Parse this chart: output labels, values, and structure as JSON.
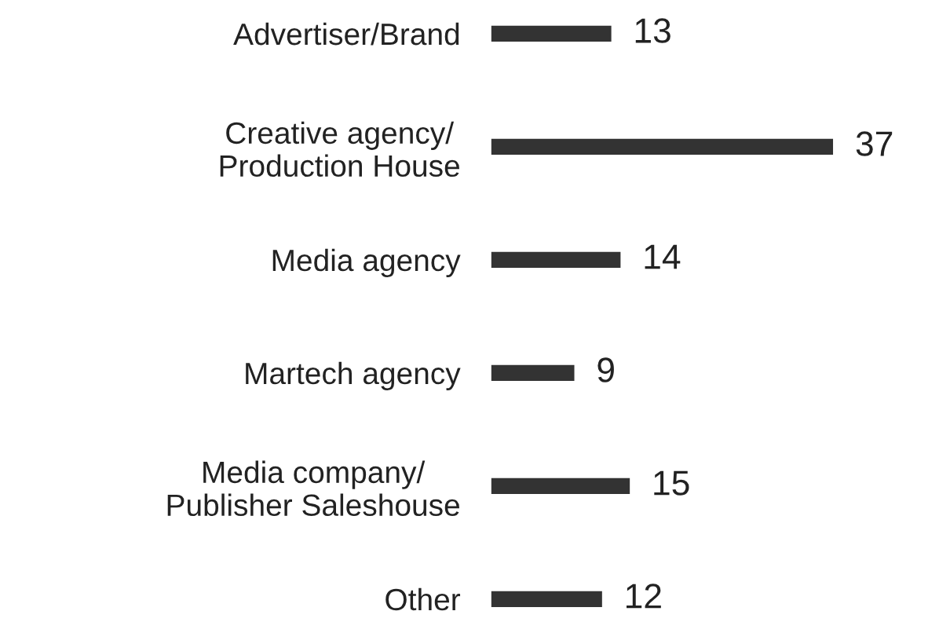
{
  "chart_data": {
    "type": "bar",
    "orientation": "horizontal",
    "categories": [
      "Advertiser/Brand",
      "Creative agency/\nProduction House",
      "Media agency",
      "Martech agency",
      "Media company/\nPublisher Saleshouse",
      "Other"
    ],
    "values": [
      13,
      37,
      14,
      9,
      15,
      12
    ],
    "color": "#333333",
    "data_labels": true,
    "tick_labels": "y"
  }
}
